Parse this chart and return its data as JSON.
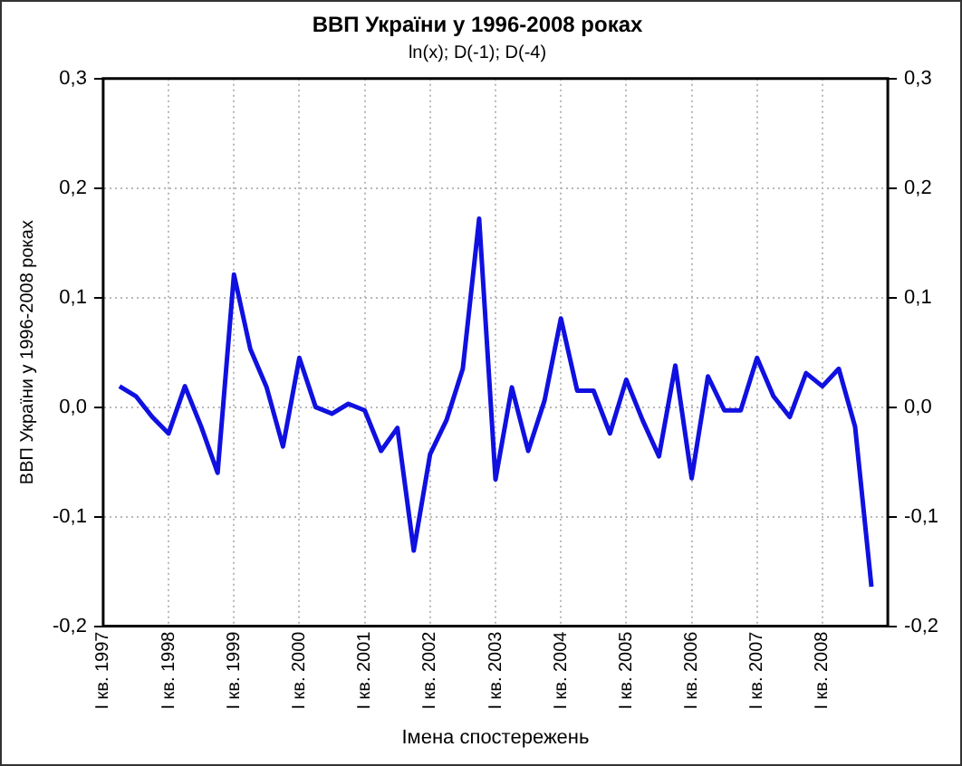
{
  "chart_data": {
    "type": "line",
    "title": "ВВП України у 1996-2008 роках",
    "subtitle": "ln(x); D(-1); D(-4)",
    "xlabel": "Імена спостережень",
    "ylabel": "ВВП України у 1996-2008 роках",
    "categories": [
      "I кв. 1997",
      null,
      null,
      null,
      "I кв. 1998",
      null,
      null,
      null,
      "I кв. 1999",
      null,
      null,
      null,
      "I кв. 2000",
      null,
      null,
      null,
      "I кв. 2001",
      null,
      null,
      null,
      "I кв. 2002",
      null,
      null,
      null,
      "I кв. 2003",
      null,
      null,
      null,
      "I кв. 2004",
      null,
      null,
      null,
      "I кв. 2005",
      null,
      null,
      null,
      "I кв. 2006",
      null,
      null,
      null,
      "I кв. 2007",
      null,
      null,
      null,
      "I кв. 2008",
      null,
      null,
      null,
      null
    ],
    "series": [
      {
        "color": "#1010e0",
        "values": [
          null,
          0.019,
          0.01,
          -0.009,
          -0.024,
          0.019,
          -0.018,
          -0.06,
          0.121,
          0.053,
          0.018,
          -0.036,
          0.045,
          0.0,
          -0.006,
          0.003,
          -0.003,
          -0.04,
          -0.019,
          -0.131,
          -0.043,
          -0.012,
          0.035,
          0.172,
          -0.066,
          0.018,
          -0.04,
          0.006,
          0.081,
          0.015,
          0.015,
          -0.024,
          0.025,
          -0.012,
          -0.045,
          0.038,
          -0.065,
          0.028,
          -0.003,
          -0.003,
          0.045,
          0.01,
          -0.009,
          0.031,
          0.019,
          0.035,
          -0.018,
          -0.164,
          null
        ]
      }
    ],
    "ylim": [
      -0.2,
      0.3
    ],
    "yticks": [
      {
        "value": -0.2,
        "label": "-0,2"
      },
      {
        "value": -0.1,
        "label": "-0,1"
      },
      {
        "value": 0,
        "label": "0,0"
      },
      {
        "value": 0.1,
        "label": "0,1"
      },
      {
        "value": 0.2,
        "label": "0,2"
      },
      {
        "value": 0.3,
        "label": "0,3"
      }
    ],
    "y2lim": [
      -0.2,
      0.3
    ],
    "y2ticks": [
      {
        "value": -0.2,
        "label": "-0,2"
      },
      {
        "value": -0.1,
        "label": "-0,1"
      },
      {
        "value": 0,
        "label": "0,0"
      },
      {
        "value": 0.1,
        "label": "0,1"
      },
      {
        "value": 0.2,
        "label": "0,2"
      },
      {
        "value": 0.3,
        "label": "0,3"
      }
    ],
    "grid": true,
    "legend": false,
    "line_style": "solid"
  }
}
